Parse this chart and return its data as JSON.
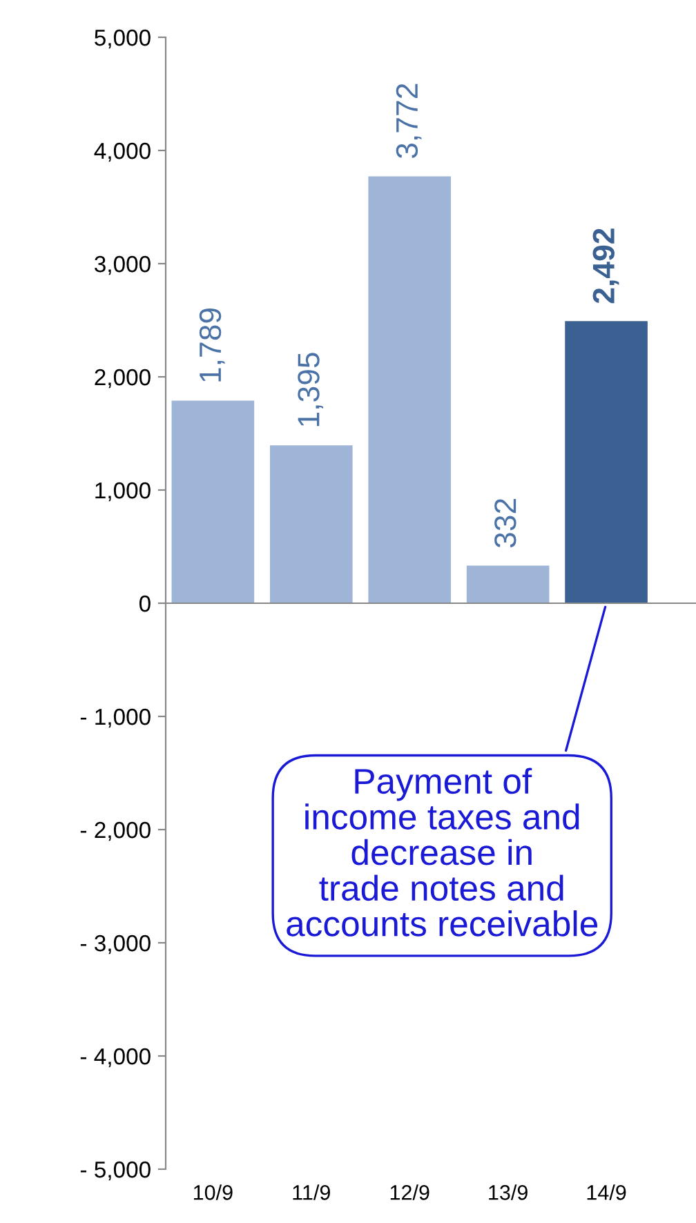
{
  "chart_data": {
    "type": "bar",
    "categories": [
      "10/9",
      "11/9",
      "12/9",
      "13/9",
      "14/9"
    ],
    "values": [
      1789,
      1395,
      3772,
      332,
      2492
    ],
    "colors": [
      "#9fb5d8",
      "#9fb5d8",
      "#9fb5d8",
      "#9fb5d8",
      "#3b6193"
    ],
    "value_labels": [
      "1,789",
      "1,395",
      "3,772",
      "332",
      "2,492"
    ],
    "ylim": [
      -5000,
      5000
    ],
    "yticks": [
      {
        "value": -5000,
        "label": "- 5,000"
      },
      {
        "value": -4000,
        "label": "- 4,000"
      },
      {
        "value": -3000,
        "label": "- 3,000"
      },
      {
        "value": -2000,
        "label": "- 2,000"
      },
      {
        "value": -1000,
        "label": "- 1,000"
      },
      0,
      {
        "value": 1000,
        "label": "1,000"
      },
      {
        "value": 2000,
        "label": "2,000"
      },
      {
        "value": 3000,
        "label": "3,000"
      },
      {
        "value": 4000,
        "label": "4,000"
      },
      {
        "value": 5000,
        "label": "5,000"
      }
    ],
    "annotations": [
      {
        "text": "Payment of\nincome taxes and\ndecrease in\ntrade notes and\naccounts receivable",
        "x": "14/9",
        "y": 0
      }
    ],
    "legend": false
  }
}
